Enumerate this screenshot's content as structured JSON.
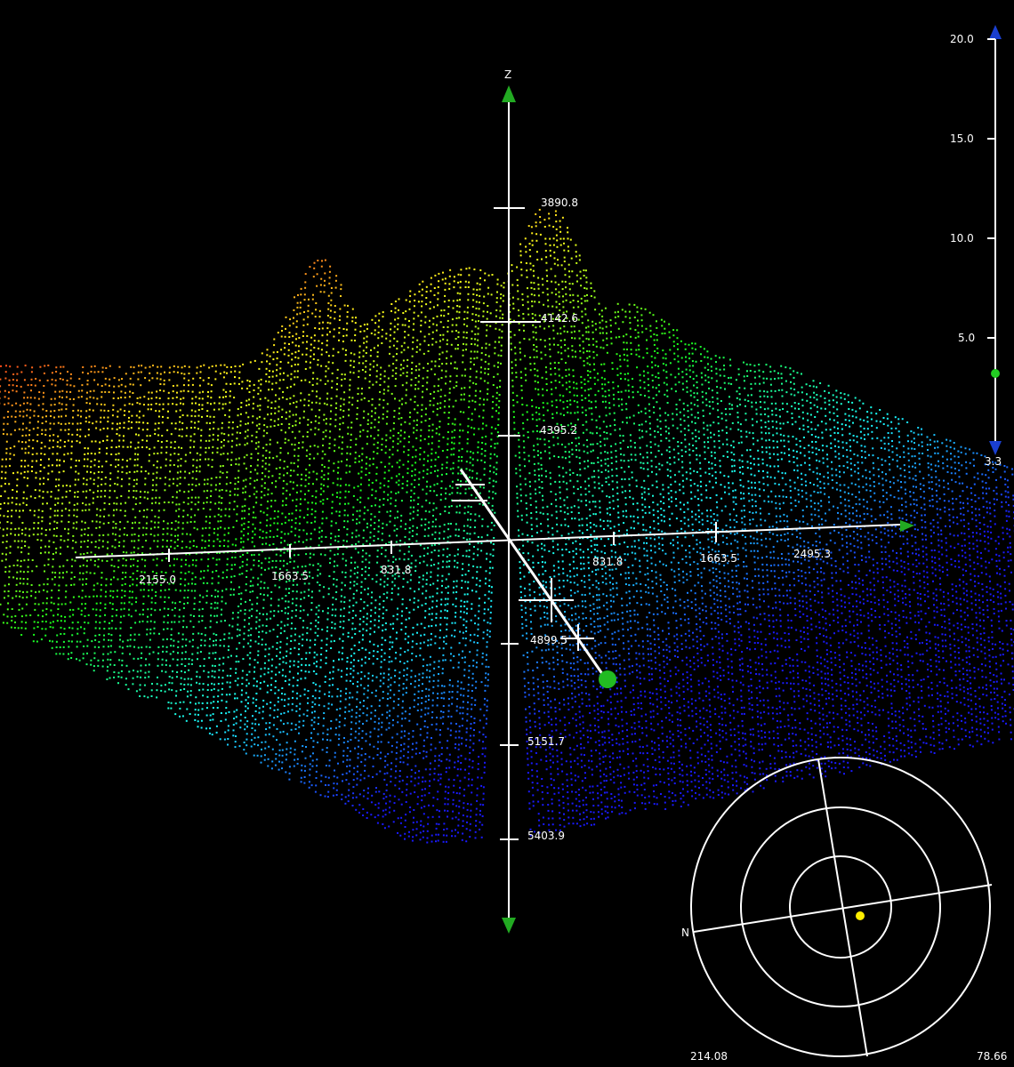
{
  "axes": {
    "z_label": "Z",
    "z_ticks": [
      "3890.8",
      "4142.6",
      "4395.2",
      "4899.5",
      "5151.7",
      "5403.9"
    ],
    "x_ticks": [
      "2155.0",
      "1663.5",
      "831.8",
      "831.8",
      "1663.5",
      "2495.3"
    ]
  },
  "depth_scale": {
    "ticks": [
      "20.0",
      "15.0",
      "10.0",
      "5.0"
    ],
    "current_value": "3.3"
  },
  "compass": {
    "north_label": "N",
    "heading": "214.08",
    "tilt": "78.66"
  },
  "colors": {
    "background": "#000000",
    "axis": "#ffffff",
    "marker": "#22cc22",
    "compass_dot": "#ffee00",
    "scale_arrow": "#1a3fd0"
  }
}
